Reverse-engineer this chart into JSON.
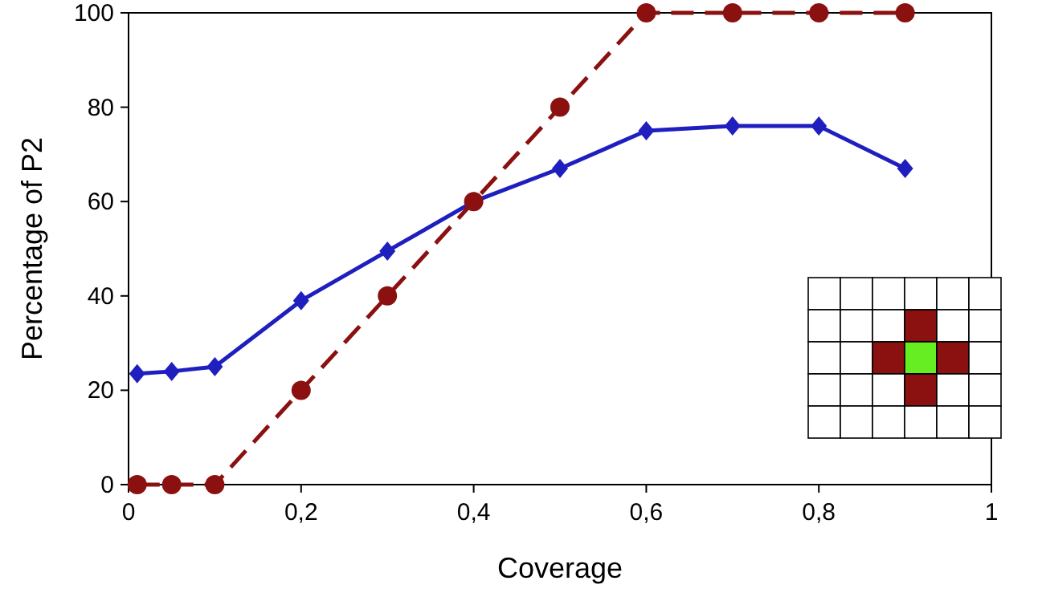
{
  "chart_data": {
    "type": "line",
    "xlabel": "Coverage",
    "ylabel": "Percentage of P2",
    "xlim": [
      0,
      1
    ],
    "ylim": [
      0,
      100
    ],
    "xticks": [
      0,
      {
        "value": 0.2,
        "label": "0,2"
      },
      {
        "value": 0.4,
        "label": "0,4"
      },
      {
        "value": 0.6,
        "label": "0,6"
      },
      {
        "value": 0.8,
        "label": "0,8"
      },
      1
    ],
    "yticks": [
      0,
      20,
      40,
      60,
      80,
      100
    ],
    "grid": false,
    "series": [
      {
        "color": "#1f1fbf",
        "marker": "diamond",
        "line_style": "solid",
        "x": [
          0.01,
          0.05,
          0.1,
          0.2,
          0.3,
          0.4,
          0.5,
          0.6,
          0.7,
          0.8,
          0.9
        ],
        "values": [
          23.5,
          24,
          25,
          39,
          49.5,
          60,
          67,
          75,
          76,
          76,
          67
        ]
      },
      {
        "color": "#8b1010",
        "marker": "circle",
        "line_style": "dashed",
        "x": [
          0.01,
          0.05,
          0.1,
          0.2,
          0.3,
          0.4,
          0.5,
          0.6,
          0.7,
          0.8,
          0.9
        ],
        "values": [
          0,
          0,
          0,
          20,
          40,
          60,
          80,
          100,
          100,
          100,
          100
        ]
      }
    ]
  }
}
